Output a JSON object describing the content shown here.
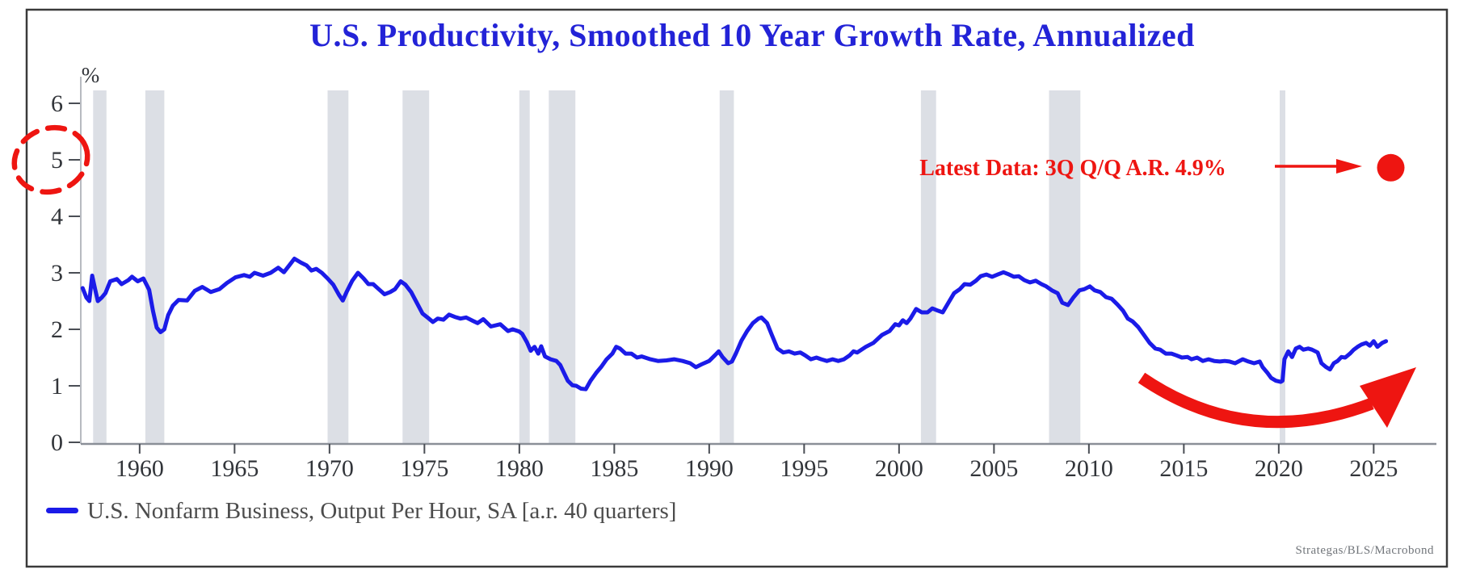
{
  "title": "U.S. Productivity, Smoothed 10 Year Growth Rate, Annualized",
  "y_axis": {
    "unit_label": "%",
    "ticks": [
      0,
      1,
      2,
      3,
      4,
      5,
      6
    ]
  },
  "x_axis": {
    "ticks": [
      1960,
      1965,
      1970,
      1975,
      1980,
      1985,
      1990,
      1995,
      2000,
      2005,
      2010,
      2015,
      2020,
      2025
    ]
  },
  "annotation": {
    "label": "Latest Data: 3Q Q/Q A.R. 4.9%"
  },
  "legend": {
    "label": "U.S. Nonfarm Business, Output Per Hour, SA [a.r. 40 quarters]"
  },
  "attribution": "Strategas/BLS/Macrobond",
  "colors": {
    "title": "#2323d7",
    "line": "#1b1be8",
    "accent_red": "#ee1511",
    "recession_band": "#dcdfe5",
    "axis_text": "#32353a",
    "legend_text": "#4c4c4c",
    "attribution_text": "#71757a"
  },
  "chart_data": {
    "type": "line",
    "title": "U.S. Productivity, Smoothed 10 Year Growth Rate, Annualized",
    "xlabel": "",
    "ylabel": "%",
    "xlim": [
      1956.9,
      2028.0
    ],
    "ylim": [
      0,
      6.23
    ],
    "grid": false,
    "legend_position": "bottom-left",
    "x_ticks": [
      1960,
      1965,
      1970,
      1975,
      1980,
      1985,
      1990,
      1995,
      2000,
      2005,
      2010,
      2015,
      2020,
      2025
    ],
    "y_ticks": [
      0,
      1,
      2,
      3,
      4,
      5,
      6
    ],
    "recession_bands": [
      [
        1957.55,
        1958.25
      ],
      [
        1960.3,
        1961.3
      ],
      [
        1969.9,
        1971.0
      ],
      [
        1973.85,
        1975.25
      ],
      [
        1980.0,
        1980.55
      ],
      [
        1981.55,
        1982.95
      ],
      [
        1990.55,
        1991.3
      ],
      [
        2001.15,
        2001.95
      ],
      [
        2007.9,
        2009.55
      ],
      [
        2020.05,
        2020.35
      ]
    ],
    "latest_point": {
      "year": 2025.9,
      "value": 4.86,
      "label": "Latest Data: 3Q Q/Q A.R. 4.9%"
    },
    "series": [
      {
        "name": "U.S. Nonfarm Business, Output Per Hour, SA [a.r. 40 quarters]",
        "color": "#1b1be8",
        "points": [
          [
            1957.0,
            2.73
          ],
          [
            1957.2,
            2.56
          ],
          [
            1957.35,
            2.5
          ],
          [
            1957.5,
            2.95
          ],
          [
            1957.65,
            2.72
          ],
          [
            1957.8,
            2.5
          ],
          [
            1958.0,
            2.56
          ],
          [
            1958.2,
            2.64
          ],
          [
            1958.45,
            2.85
          ],
          [
            1958.8,
            2.89
          ],
          [
            1959.05,
            2.8
          ],
          [
            1959.4,
            2.87
          ],
          [
            1959.6,
            2.93
          ],
          [
            1959.9,
            2.85
          ],
          [
            1960.2,
            2.9
          ],
          [
            1960.5,
            2.7
          ],
          [
            1960.7,
            2.33
          ],
          [
            1960.9,
            2.03
          ],
          [
            1961.1,
            1.95
          ],
          [
            1961.3,
            2.0
          ],
          [
            1961.5,
            2.25
          ],
          [
            1961.75,
            2.42
          ],
          [
            1962.05,
            2.52
          ],
          [
            1962.5,
            2.51
          ],
          [
            1962.9,
            2.68
          ],
          [
            1963.3,
            2.75
          ],
          [
            1963.75,
            2.66
          ],
          [
            1964.2,
            2.71
          ],
          [
            1964.6,
            2.82
          ],
          [
            1965.05,
            2.92
          ],
          [
            1965.5,
            2.96
          ],
          [
            1965.8,
            2.93
          ],
          [
            1966.05,
            3.0
          ],
          [
            1966.5,
            2.95
          ],
          [
            1966.9,
            3.0
          ],
          [
            1967.3,
            3.09
          ],
          [
            1967.6,
            3.01
          ],
          [
            1967.9,
            3.14
          ],
          [
            1968.15,
            3.25
          ],
          [
            1968.5,
            3.18
          ],
          [
            1968.8,
            3.13
          ],
          [
            1969.05,
            3.04
          ],
          [
            1969.3,
            3.07
          ],
          [
            1969.6,
            3.0
          ],
          [
            1969.9,
            2.9
          ],
          [
            1970.2,
            2.79
          ],
          [
            1970.5,
            2.61
          ],
          [
            1970.7,
            2.51
          ],
          [
            1970.9,
            2.66
          ],
          [
            1971.2,
            2.86
          ],
          [
            1971.5,
            3.0
          ],
          [
            1971.8,
            2.9
          ],
          [
            1972.05,
            2.8
          ],
          [
            1972.3,
            2.8
          ],
          [
            1972.6,
            2.71
          ],
          [
            1972.9,
            2.62
          ],
          [
            1973.2,
            2.66
          ],
          [
            1973.45,
            2.71
          ],
          [
            1973.75,
            2.85
          ],
          [
            1974.0,
            2.79
          ],
          [
            1974.3,
            2.66
          ],
          [
            1974.6,
            2.47
          ],
          [
            1974.9,
            2.28
          ],
          [
            1975.2,
            2.2
          ],
          [
            1975.45,
            2.13
          ],
          [
            1975.7,
            2.19
          ],
          [
            1976.0,
            2.17
          ],
          [
            1976.3,
            2.26
          ],
          [
            1976.6,
            2.22
          ],
          [
            1976.9,
            2.19
          ],
          [
            1977.2,
            2.21
          ],
          [
            1977.55,
            2.15
          ],
          [
            1977.8,
            2.11
          ],
          [
            1978.1,
            2.18
          ],
          [
            1978.5,
            2.05
          ],
          [
            1979.0,
            2.09
          ],
          [
            1979.4,
            1.97
          ],
          [
            1979.65,
            2.0
          ],
          [
            1980.0,
            1.96
          ],
          [
            1980.15,
            1.92
          ],
          [
            1980.4,
            1.77
          ],
          [
            1980.6,
            1.62
          ],
          [
            1980.8,
            1.69
          ],
          [
            1981.0,
            1.57
          ],
          [
            1981.15,
            1.7
          ],
          [
            1981.35,
            1.52
          ],
          [
            1981.65,
            1.47
          ],
          [
            1981.95,
            1.44
          ],
          [
            1982.15,
            1.37
          ],
          [
            1982.35,
            1.23
          ],
          [
            1982.55,
            1.09
          ],
          [
            1982.8,
            1.01
          ],
          [
            1983.0,
            1.0
          ],
          [
            1983.25,
            0.95
          ],
          [
            1983.5,
            0.94
          ],
          [
            1983.75,
            1.09
          ],
          [
            1984.05,
            1.23
          ],
          [
            1984.3,
            1.33
          ],
          [
            1984.6,
            1.47
          ],
          [
            1984.9,
            1.57
          ],
          [
            1985.1,
            1.69
          ],
          [
            1985.3,
            1.66
          ],
          [
            1985.6,
            1.57
          ],
          [
            1985.9,
            1.57
          ],
          [
            1986.2,
            1.5
          ],
          [
            1986.45,
            1.52
          ],
          [
            1986.9,
            1.47
          ],
          [
            1987.3,
            1.44
          ],
          [
            1987.75,
            1.45
          ],
          [
            1988.15,
            1.47
          ],
          [
            1988.6,
            1.44
          ],
          [
            1989.0,
            1.4
          ],
          [
            1989.3,
            1.33
          ],
          [
            1989.6,
            1.38
          ],
          [
            1990.0,
            1.44
          ],
          [
            1990.3,
            1.54
          ],
          [
            1990.5,
            1.61
          ],
          [
            1990.7,
            1.51
          ],
          [
            1991.0,
            1.4
          ],
          [
            1991.2,
            1.43
          ],
          [
            1991.4,
            1.57
          ],
          [
            1991.7,
            1.8
          ],
          [
            1992.0,
            1.97
          ],
          [
            1992.3,
            2.11
          ],
          [
            1992.6,
            2.19
          ],
          [
            1992.75,
            2.21
          ],
          [
            1993.05,
            2.11
          ],
          [
            1993.3,
            1.9
          ],
          [
            1993.6,
            1.66
          ],
          [
            1993.9,
            1.59
          ],
          [
            1994.2,
            1.61
          ],
          [
            1994.5,
            1.57
          ],
          [
            1994.8,
            1.59
          ],
          [
            1995.05,
            1.54
          ],
          [
            1995.35,
            1.47
          ],
          [
            1995.65,
            1.5
          ],
          [
            1995.9,
            1.47
          ],
          [
            1996.2,
            1.44
          ],
          [
            1996.5,
            1.47
          ],
          [
            1996.8,
            1.44
          ],
          [
            1997.1,
            1.47
          ],
          [
            1997.4,
            1.54
          ],
          [
            1997.6,
            1.61
          ],
          [
            1997.8,
            1.59
          ],
          [
            1998.25,
            1.69
          ],
          [
            1998.65,
            1.76
          ],
          [
            1999.1,
            1.9
          ],
          [
            1999.5,
            1.97
          ],
          [
            1999.8,
            2.09
          ],
          [
            2000.0,
            2.07
          ],
          [
            2000.2,
            2.16
          ],
          [
            2000.4,
            2.11
          ],
          [
            2000.6,
            2.19
          ],
          [
            2000.9,
            2.36
          ],
          [
            2001.2,
            2.3
          ],
          [
            2001.5,
            2.3
          ],
          [
            2001.75,
            2.37
          ],
          [
            2002.05,
            2.33
          ],
          [
            2002.3,
            2.3
          ],
          [
            2002.6,
            2.47
          ],
          [
            2002.9,
            2.64
          ],
          [
            2003.2,
            2.71
          ],
          [
            2003.45,
            2.8
          ],
          [
            2003.75,
            2.79
          ],
          [
            2004.05,
            2.86
          ],
          [
            2004.3,
            2.94
          ],
          [
            2004.6,
            2.97
          ],
          [
            2004.9,
            2.93
          ],
          [
            2005.2,
            2.97
          ],
          [
            2005.5,
            3.01
          ],
          [
            2005.8,
            2.97
          ],
          [
            2006.05,
            2.93
          ],
          [
            2006.3,
            2.94
          ],
          [
            2006.6,
            2.87
          ],
          [
            2006.9,
            2.83
          ],
          [
            2007.2,
            2.86
          ],
          [
            2007.5,
            2.8
          ],
          [
            2007.75,
            2.76
          ],
          [
            2008.05,
            2.69
          ],
          [
            2008.35,
            2.64
          ],
          [
            2008.6,
            2.47
          ],
          [
            2008.9,
            2.43
          ],
          [
            2009.2,
            2.57
          ],
          [
            2009.5,
            2.69
          ],
          [
            2009.75,
            2.71
          ],
          [
            2010.05,
            2.76
          ],
          [
            2010.3,
            2.69
          ],
          [
            2010.6,
            2.66
          ],
          [
            2010.9,
            2.57
          ],
          [
            2011.2,
            2.54
          ],
          [
            2011.5,
            2.44
          ],
          [
            2011.8,
            2.33
          ],
          [
            2012.05,
            2.19
          ],
          [
            2012.3,
            2.14
          ],
          [
            2012.6,
            2.04
          ],
          [
            2012.9,
            1.9
          ],
          [
            2013.2,
            1.76
          ],
          [
            2013.5,
            1.66
          ],
          [
            2013.75,
            1.64
          ],
          [
            2014.05,
            1.57
          ],
          [
            2014.35,
            1.57
          ],
          [
            2014.6,
            1.54
          ],
          [
            2014.9,
            1.5
          ],
          [
            2015.2,
            1.51
          ],
          [
            2015.4,
            1.47
          ],
          [
            2015.7,
            1.5
          ],
          [
            2016.0,
            1.44
          ],
          [
            2016.3,
            1.47
          ],
          [
            2016.6,
            1.44
          ],
          [
            2016.9,
            1.43
          ],
          [
            2017.15,
            1.44
          ],
          [
            2017.4,
            1.43
          ],
          [
            2017.7,
            1.4
          ],
          [
            2018.1,
            1.47
          ],
          [
            2018.4,
            1.43
          ],
          [
            2018.7,
            1.4
          ],
          [
            2019.0,
            1.43
          ],
          [
            2019.15,
            1.33
          ],
          [
            2019.4,
            1.23
          ],
          [
            2019.6,
            1.14
          ],
          [
            2019.85,
            1.09
          ],
          [
            2020.1,
            1.07
          ],
          [
            2020.2,
            1.09
          ],
          [
            2020.3,
            1.47
          ],
          [
            2020.5,
            1.61
          ],
          [
            2020.7,
            1.51
          ],
          [
            2020.9,
            1.66
          ],
          [
            2021.1,
            1.69
          ],
          [
            2021.3,
            1.64
          ],
          [
            2021.55,
            1.66
          ],
          [
            2021.75,
            1.64
          ],
          [
            2022.05,
            1.59
          ],
          [
            2022.25,
            1.4
          ],
          [
            2022.5,
            1.33
          ],
          [
            2022.7,
            1.29
          ],
          [
            2022.9,
            1.4
          ],
          [
            2023.1,
            1.44
          ],
          [
            2023.3,
            1.51
          ],
          [
            2023.5,
            1.5
          ],
          [
            2023.75,
            1.57
          ],
          [
            2023.95,
            1.64
          ],
          [
            2024.15,
            1.69
          ],
          [
            2024.35,
            1.73
          ],
          [
            2024.6,
            1.76
          ],
          [
            2024.8,
            1.71
          ],
          [
            2025.0,
            1.79
          ],
          [
            2025.2,
            1.69
          ],
          [
            2025.45,
            1.76
          ],
          [
            2025.65,
            1.79
          ]
        ]
      }
    ]
  }
}
